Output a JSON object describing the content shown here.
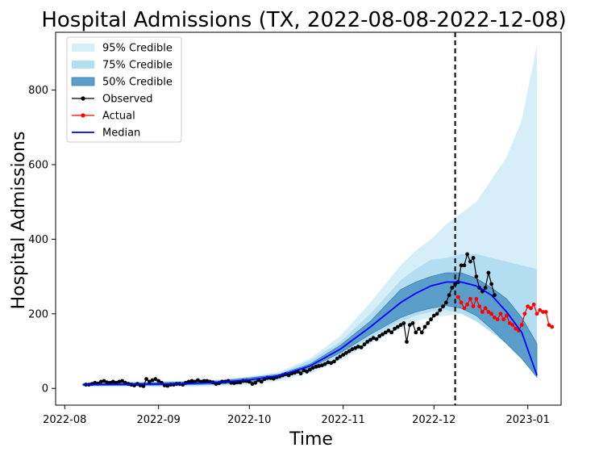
{
  "chart_data": {
    "type": "line",
    "title": "Hospital Admissions (TX, 2022-08-08-2022-12-08)",
    "xlabel": "Time",
    "ylabel": "Hospital Admissions",
    "x_ticks": [
      "2022-08",
      "2022-09",
      "2022-10",
      "2022-11",
      "2022-12",
      "2023-01"
    ],
    "y_ticks": [
      0,
      200,
      400,
      600,
      800
    ],
    "xlim": [
      "2022-07-29",
      "2023-01-12"
    ],
    "ylim": [
      -45,
      955
    ],
    "forecast_date": "2022-12-08",
    "legend_position": "upper-left",
    "legend": [
      {
        "label": "95% Credible",
        "kind": "band",
        "color": "#d6eef8"
      },
      {
        "label": "75% Credible",
        "kind": "band",
        "color": "#b3def2"
      },
      {
        "label": "50% Credible",
        "kind": "band",
        "color": "#5b9ec9"
      },
      {
        "label": "Observed",
        "kind": "marker-line",
        "color": "#000000"
      },
      {
        "label": "Actual",
        "kind": "marker-line",
        "color": "#ff0000"
      },
      {
        "label": "Median",
        "kind": "line",
        "color": "#0000ff"
      }
    ],
    "bands": {
      "x": [
        "2022-08-07",
        "2022-08-22",
        "2022-09-06",
        "2022-09-21",
        "2022-10-01",
        "2022-10-11",
        "2022-10-21",
        "2022-10-31",
        "2022-11-10",
        "2022-11-20",
        "2022-11-25",
        "2022-11-30",
        "2022-12-05",
        "2022-12-10",
        "2022-12-15",
        "2022-12-20",
        "2022-12-25",
        "2022-12-30",
        "2023-01-04"
      ],
      "q95": [
        [
          4,
          16
        ],
        [
          4,
          18
        ],
        [
          4,
          20
        ],
        [
          6,
          24
        ],
        [
          10,
          32
        ],
        [
          20,
          45
        ],
        [
          40,
          80
        ],
        [
          75,
          140
        ],
        [
          120,
          230
        ],
        [
          160,
          330
        ],
        [
          180,
          370
        ],
        [
          190,
          400
        ],
        [
          195,
          440
        ],
        [
          200,
          470
        ],
        [
          210,
          500
        ],
        [
          220,
          560
        ],
        [
          230,
          620
        ],
        [
          240,
          720
        ],
        [
          250,
          920
        ]
      ],
      "q75": [
        [
          6,
          14
        ],
        [
          6,
          16
        ],
        [
          6,
          18
        ],
        [
          9,
          22
        ],
        [
          14,
          30
        ],
        [
          25,
          40
        ],
        [
          50,
          75
        ],
        [
          90,
          125
        ],
        [
          135,
          200
        ],
        [
          180,
          290
        ],
        [
          195,
          320
        ],
        [
          205,
          345
        ],
        [
          210,
          350
        ],
        [
          200,
          360
        ],
        [
          180,
          360
        ],
        [
          150,
          350
        ],
        [
          120,
          340
        ],
        [
          90,
          330
        ],
        [
          70,
          320
        ]
      ],
      "q50": [
        [
          8,
          12
        ],
        [
          8,
          14
        ],
        [
          9,
          16
        ],
        [
          12,
          20
        ],
        [
          18,
          28
        ],
        [
          30,
          38
        ],
        [
          55,
          65
        ],
        [
          95,
          115
        ],
        [
          145,
          180
        ],
        [
          190,
          265
        ],
        [
          205,
          285
        ],
        [
          215,
          300
        ],
        [
          222,
          310
        ],
        [
          215,
          310
        ],
        [
          195,
          295
        ],
        [
          160,
          270
        ],
        [
          120,
          240
        ],
        [
          80,
          190
        ],
        [
          30,
          120
        ]
      ]
    },
    "series": [
      {
        "name": "Observed",
        "color": "#000000",
        "start": "2022-08-08",
        "values": [
          10,
          10,
          12,
          15,
          13,
          18,
          20,
          16,
          15,
          18,
          15,
          18,
          20,
          15,
          12,
          10,
          8,
          12,
          8,
          6,
          25,
          18,
          22,
          25,
          20,
          15,
          8,
          7,
          10,
          10,
          12,
          12,
          10,
          15,
          18,
          20,
          18,
          22,
          18,
          20,
          20,
          18,
          16,
          12,
          14,
          18,
          18,
          20,
          15,
          14,
          16,
          16,
          20,
          20,
          18,
          12,
          15,
          22,
          18,
          25,
          28,
          28,
          26,
          30,
          32,
          35,
          38,
          35,
          40,
          42,
          45,
          40,
          48,
          45,
          50,
          55,
          58,
          60,
          62,
          65,
          70,
          68,
          72,
          80,
          85,
          90,
          95,
          100,
          105,
          108,
          112,
          110,
          118,
          125,
          130,
          135,
          132,
          140,
          145,
          150,
          155,
          150,
          160,
          165,
          170,
          175,
          125,
          170,
          175,
          150,
          160,
          150,
          165,
          175,
          185,
          195,
          200,
          210,
          220,
          230,
          250,
          270,
          280,
          285,
          330,
          330,
          360,
          340,
          350,
          300,
          270,
          260,
          270,
          310,
          280,
          250
        ]
      },
      {
        "name": "Actual",
        "color": "#ff0000",
        "start": "2022-12-09",
        "values": [
          245,
          230,
          215,
          225,
          240,
          220,
          240,
          220,
          205,
          215,
          205,
          200,
          190,
          185,
          200,
          185,
          195,
          175,
          170,
          160,
          155,
          170,
          200,
          220,
          215,
          225,
          200,
          210,
          205,
          205,
          170,
          165
        ]
      },
      {
        "name": "Median",
        "color": "#0000ff",
        "x": [
          "2022-08-07",
          "2022-08-22",
          "2022-09-06",
          "2022-09-21",
          "2022-10-01",
          "2022-10-11",
          "2022-10-21",
          "2022-10-31",
          "2022-11-10",
          "2022-11-20",
          "2022-11-25",
          "2022-11-30",
          "2022-12-05",
          "2022-12-10",
          "2022-12-15",
          "2022-12-20",
          "2022-12-25",
          "2022-12-30",
          "2023-01-04"
        ],
        "values": [
          10,
          11,
          12,
          16,
          23,
          34,
          60,
          105,
          165,
          230,
          255,
          275,
          285,
          285,
          275,
          250,
          205,
          150,
          35
        ]
      }
    ]
  }
}
